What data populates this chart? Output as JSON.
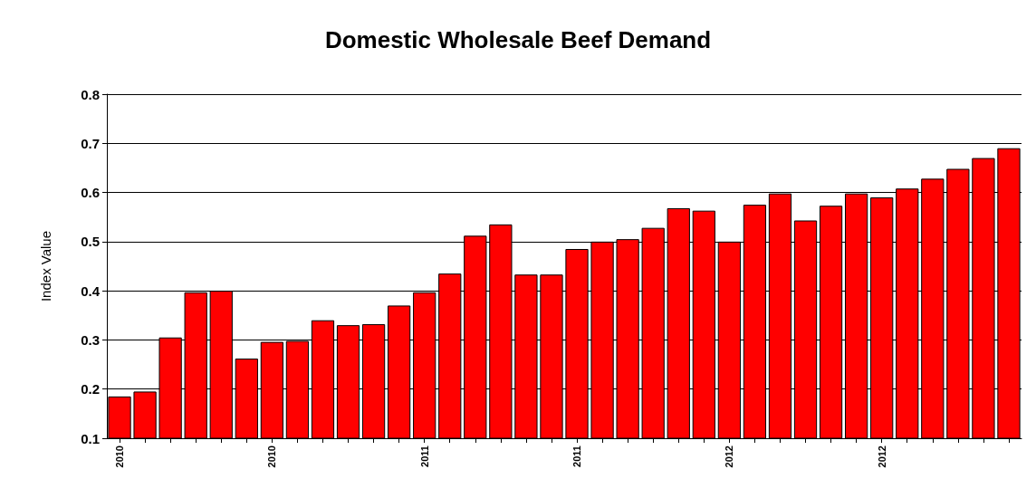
{
  "chart_data": {
    "type": "bar",
    "title": "Domestic Wholesale Beef Demand",
    "ylabel": "Index Value",
    "categories": [
      "2010",
      null,
      null,
      null,
      null,
      null,
      "2010",
      null,
      null,
      null,
      null,
      null,
      "2011",
      null,
      null,
      null,
      null,
      null,
      "2011",
      null,
      null,
      null,
      null,
      null,
      "2012",
      null,
      null,
      null,
      null,
      null,
      "2012",
      null,
      null,
      null,
      null,
      null
    ],
    "values": [
      0.185,
      0.195,
      0.305,
      0.397,
      0.4,
      0.262,
      0.296,
      0.298,
      0.34,
      0.33,
      0.332,
      0.37,
      0.397,
      0.435,
      0.512,
      0.535,
      0.433,
      0.433,
      0.485,
      0.5,
      0.505,
      0.528,
      0.568,
      0.563,
      0.5,
      0.575,
      0.598,
      0.543,
      0.573,
      0.598,
      0.59,
      0.608,
      0.628,
      0.648,
      0.67,
      0.69
    ],
    "color": "#ff0000",
    "ylim": [
      0.1,
      0.8
    ],
    "yticks": [
      0.1,
      0.2,
      0.3,
      0.4,
      0.5,
      0.6,
      0.7,
      0.8
    ],
    "grid": "y"
  }
}
